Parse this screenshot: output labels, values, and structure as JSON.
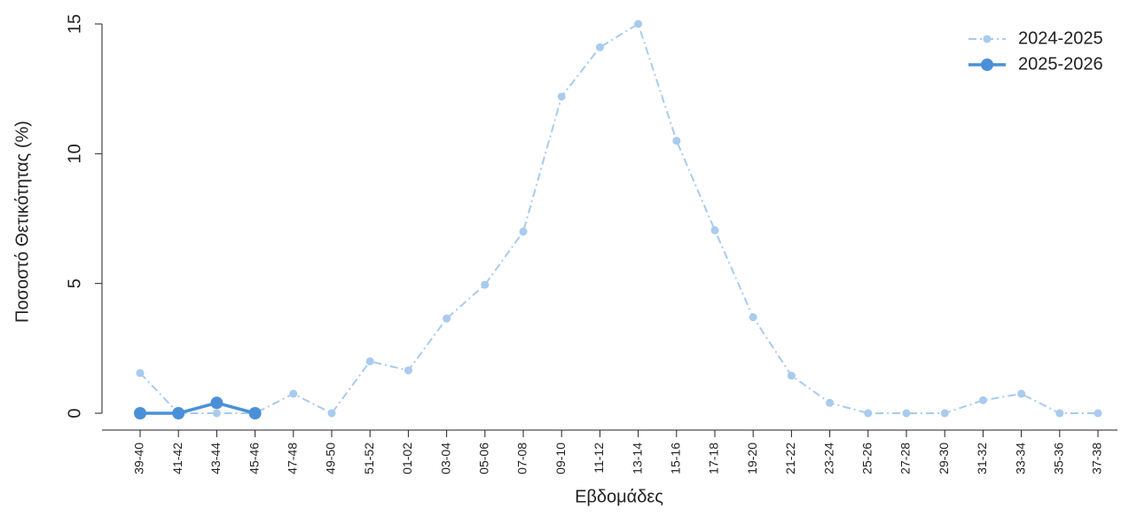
{
  "chart_data": {
    "type": "line",
    "x_label": "Εβδομάδες",
    "y_label": "Ποσοστό Θετικότητας (%)",
    "categories": [
      "39-40",
      "41-42",
      "43-44",
      "45-46",
      "47-48",
      "49-50",
      "51-52",
      "01-02",
      "03-04",
      "05-06",
      "07-08",
      "09-10",
      "11-12",
      "13-14",
      "15-16",
      "17-18",
      "19-20",
      "21-22",
      "23-24",
      "25-26",
      "27-28",
      "29-30",
      "31-32",
      "33-34",
      "35-36",
      "37-38"
    ],
    "series": [
      {
        "name": "2024-2025",
        "color": "#a9cbee",
        "values": [
          1.55,
          0,
          0,
          0,
          0.75,
          0,
          2.0,
          1.65,
          3.65,
          4.95,
          7.0,
          12.2,
          14.1,
          15.0,
          10.5,
          7.05,
          3.7,
          1.45,
          0.4,
          0,
          0,
          0,
          0.5,
          0.75,
          0,
          0
        ]
      },
      {
        "name": "2025-2026",
        "color": "#4a90d9",
        "values": [
          0,
          0,
          0.4,
          0,
          null,
          null,
          null,
          null,
          null,
          null,
          null,
          null,
          null,
          null,
          null,
          null,
          null,
          null,
          null,
          null,
          null,
          null,
          null,
          null,
          null,
          null
        ]
      }
    ],
    "ylim": [
      0,
      15
    ],
    "yticks": [
      0,
      5,
      10,
      15
    ],
    "legend": "top-right"
  }
}
